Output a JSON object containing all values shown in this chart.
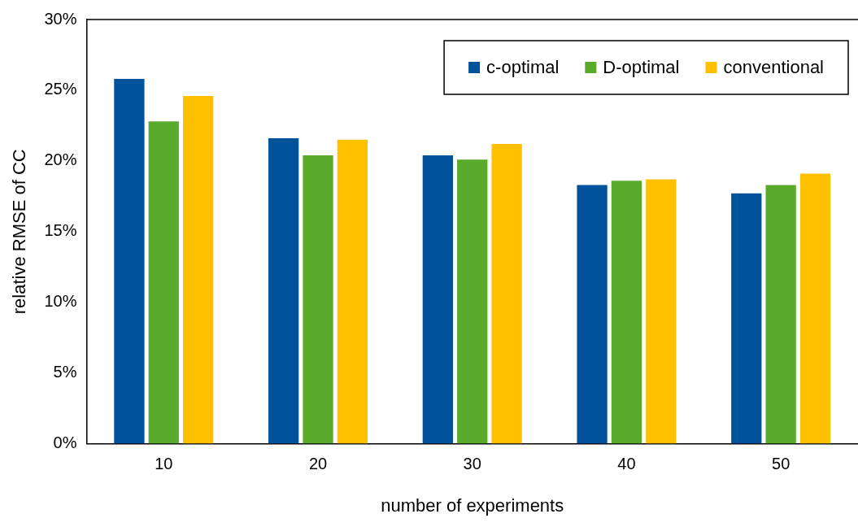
{
  "chart_data": {
    "type": "bar",
    "xlabel": "number of experiments",
    "ylabel": "relative RMSE of CC",
    "categories": [
      "10",
      "20",
      "30",
      "40",
      "50"
    ],
    "series": [
      {
        "name": "c-optimal",
        "color": "#00529b",
        "values": [
          25.8,
          21.6,
          20.4,
          18.3,
          17.7
        ]
      },
      {
        "name": "D-optimal",
        "color": "#5aab2c",
        "values": [
          22.8,
          20.4,
          20.1,
          18.6,
          18.3
        ]
      },
      {
        "name": "conventional",
        "color": "#ffc000",
        "values": [
          24.6,
          21.5,
          21.2,
          18.7,
          19.1
        ]
      }
    ],
    "ylim": [
      0,
      30
    ],
    "yticks": [
      {
        "value": 0,
        "label": "0%"
      },
      {
        "value": 5,
        "label": "5%"
      },
      {
        "value": 10,
        "label": "10%"
      },
      {
        "value": 15,
        "label": "15%"
      },
      {
        "value": 20,
        "label": "20%"
      },
      {
        "value": 25,
        "label": "25%"
      },
      {
        "value": 30,
        "label": "30%"
      }
    ],
    "grid": false,
    "legend": "top right"
  }
}
